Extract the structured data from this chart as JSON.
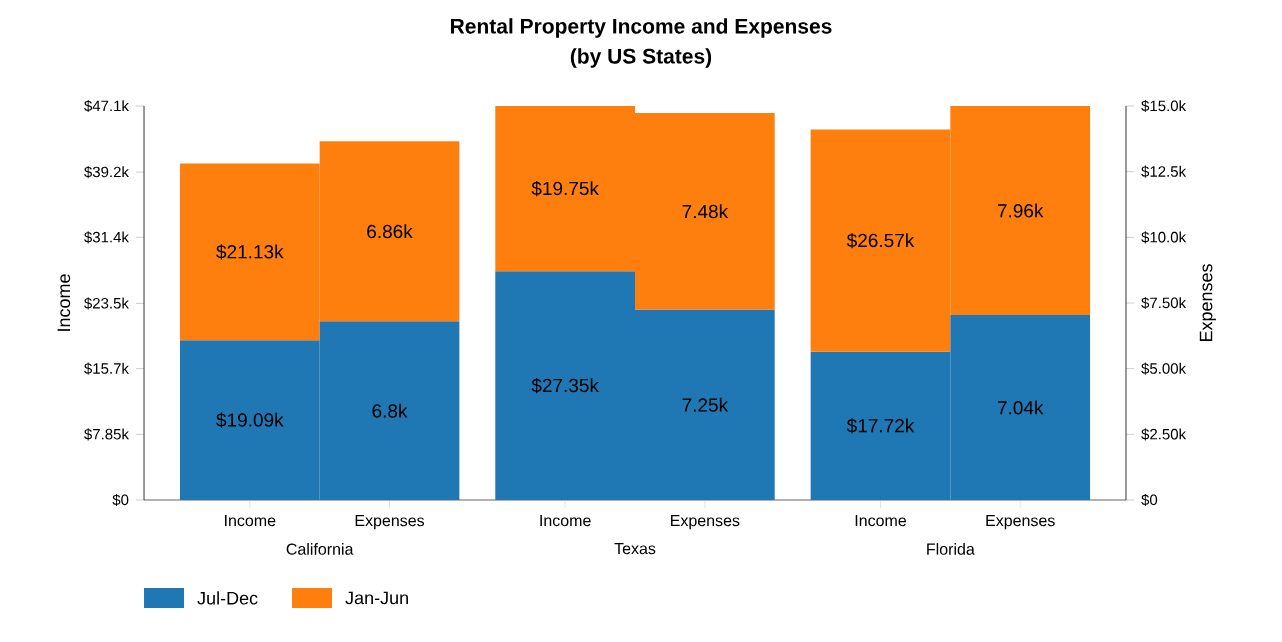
{
  "chart_data": {
    "type": "bar",
    "stacked": true,
    "title": "Rental Property Income and Expenses",
    "subtitle": "(by US States)",
    "ylabel": "Income",
    "y2label": "Expenses",
    "categories": [
      "Income",
      "Expenses",
      "Income",
      "Expenses",
      "Income",
      "Expenses"
    ],
    "annotations": [
      "California",
      "Texas",
      "Florida"
    ],
    "ylim": [
      0,
      47.1
    ],
    "yticks": [
      {
        "value": 0,
        "label": "$0"
      },
      {
        "value": 7.85,
        "label": "$7.85k"
      },
      {
        "value": 15.7,
        "label": "$15.7k"
      },
      {
        "value": 23.5,
        "label": "$23.5k"
      },
      {
        "value": 31.4,
        "label": "$31.4k"
      },
      {
        "value": 39.2,
        "label": "$39.2k"
      },
      {
        "value": 47.1,
        "label": "$47.1k"
      }
    ],
    "y2lim": [
      0,
      15
    ],
    "y2ticks": [
      {
        "value": 0,
        "label": "$0"
      },
      {
        "value": 2.5,
        "label": "$2.50k"
      },
      {
        "value": 5,
        "label": "$5.00k"
      },
      {
        "value": 7.5,
        "label": "$7.50k"
      },
      {
        "value": 10,
        "label": "$10.0k"
      },
      {
        "value": 12.5,
        "label": "$12.5k"
      },
      {
        "value": 15,
        "label": "$15.0k"
      }
    ],
    "series": [
      {
        "name": "Jul-Dec",
        "color": "#1f77b4",
        "axis": "y",
        "values": [
          19.09,
          null,
          27.35,
          null,
          17.72,
          null
        ],
        "value_labels": [
          "$19.09k",
          null,
          "$27.35k",
          null,
          "$17.72k",
          null
        ]
      },
      {
        "name": "Jan-Jun",
        "color": "#ff7f0e",
        "axis": "y",
        "values": [
          21.13,
          null,
          19.75,
          null,
          26.57,
          null
        ],
        "value_labels": [
          "$21.13k",
          null,
          "$19.75k",
          null,
          "$26.57k",
          null
        ]
      },
      {
        "color": "#1f77b4",
        "axis": "y2",
        "values": [
          null,
          6.8,
          null,
          7.25,
          null,
          7.04
        ],
        "value_labels": [
          null,
          "6.8k",
          null,
          "7.25k",
          null,
          "7.04k"
        ]
      },
      {
        "color": "#ff7f0e",
        "axis": "y2",
        "values": [
          null,
          6.86,
          null,
          7.48,
          null,
          7.96
        ],
        "value_labels": [
          null,
          "6.86k",
          null,
          "7.48k",
          null,
          "7.96k"
        ]
      }
    ],
    "legend": "bottom left"
  }
}
